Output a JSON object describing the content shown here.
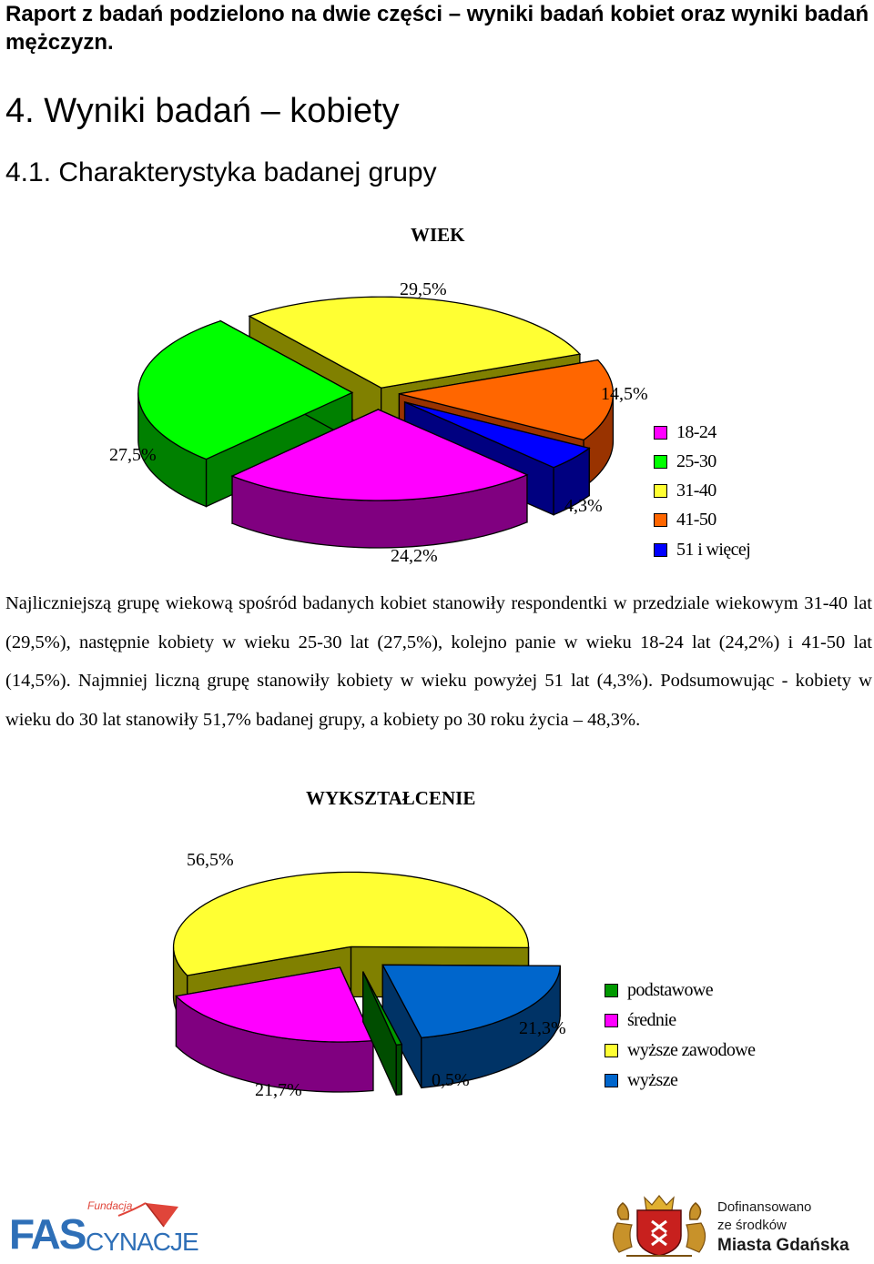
{
  "header": {
    "intro": "Raport z badań podzielono na dwie części – wyniki badań kobiet oraz wyniki badań mężczyzn.",
    "section_title": "4. Wyniki badań – kobiety",
    "subsection_title": "4.1. Charakterystyka badanej grupy"
  },
  "paragraph": "Najliczniejszą grupę wiekową spośród badanych kobiet stanowiły respondentki w przedziale wiekowym 31-40 lat (29,5%), następnie kobiety w wieku 25-30 lat (27,5%), kolejno panie w wieku 18-24 lat (24,2%) i 41-50 lat (14,5%). Najmniej liczną grupę stanowiły kobiety w wieku powyżej 51 lat (4,3%). Podsumowując - kobiety w wieku do 30 lat stanowiły 51,7% badanej grupy, a kobiety po 30 roku życia – 48,3%.",
  "chart_data": [
    {
      "type": "pie",
      "title": "WIEK",
      "categories": [
        "18-24",
        "25-30",
        "31-40",
        "41-50",
        "51 i więcej"
      ],
      "values": [
        24.2,
        27.5,
        29.5,
        14.5,
        4.3
      ],
      "value_labels": [
        "24,2%",
        "27,5%",
        "29,5%",
        "14,5%",
        "4,3%"
      ],
      "colors": [
        "#FF00FF",
        "#00FF00",
        "#FFFF33",
        "#FF6600",
        "#0000FF"
      ],
      "side_colors": [
        "#800080",
        "#008000",
        "#808000",
        "#993300",
        "#000080"
      ],
      "legend": "right",
      "exploded": true,
      "style": "3d"
    },
    {
      "type": "pie",
      "title": "WYKSZTAŁCENIE",
      "categories": [
        "podstawowe",
        "średnie",
        "wyższe zawodowe",
        "wyższe"
      ],
      "values": [
        0.5,
        21.7,
        56.5,
        21.3
      ],
      "value_labels": [
        "0,5%",
        "21,7%",
        "56,5%",
        "21,3%"
      ],
      "colors": [
        "#009900",
        "#FF00FF",
        "#FFFF33",
        "#0066CC"
      ],
      "side_colors": [
        "#004D00",
        "#800080",
        "#808000",
        "#003366"
      ],
      "legend": "right",
      "exploded": true,
      "style": "3d"
    }
  ],
  "logos": {
    "left": {
      "line1": "Fundacja",
      "main": "FAS",
      "main2": "CYNACJE"
    },
    "right": {
      "line1": "Dofinansowano",
      "line2": "ze środków",
      "line3": "Miasta Gdańska"
    }
  }
}
